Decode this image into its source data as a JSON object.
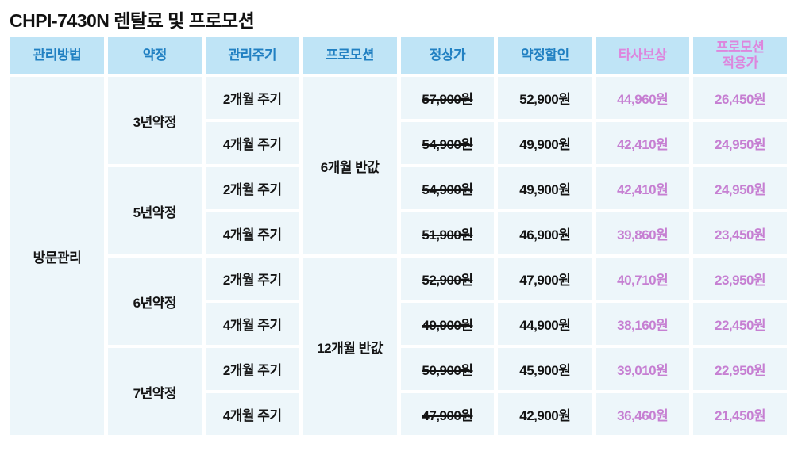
{
  "title": "CHPI-7430N 렌탈료 및 프로모션",
  "colors": {
    "header_bg": "#bfe4f6",
    "header_blue": "#2180c2",
    "header_pink": "#dd86dd",
    "body_bg": "#edf6fa",
    "price_purple": "#c67fd2",
    "body_text": "#141414",
    "page_bg": "#ffffff"
  },
  "table": {
    "headers": [
      "관리방법",
      "약정",
      "관리주기",
      "프로모션",
      "정상가",
      "약정할인",
      "타사보상",
      "프로모션\n적용가"
    ],
    "management_method": "방문관리",
    "rows": [
      {
        "contract": "3년약정",
        "cycle": "2개월 주기",
        "promotion": "6개월 반값",
        "regular_price": "57,900원",
        "contract_discount": "52,900원",
        "tradein_credit": "44,960원",
        "promo_price": "26,450원"
      },
      {
        "cycle": "4개월 주기",
        "regular_price": "54,900원",
        "contract_discount": "49,900원",
        "tradein_credit": "42,410원",
        "promo_price": "24,950원"
      },
      {
        "contract": "5년약정",
        "cycle": "2개월 주기",
        "regular_price": "54,900원",
        "contract_discount": "49,900원",
        "tradein_credit": "42,410원",
        "promo_price": "24,950원"
      },
      {
        "cycle": "4개월 주기",
        "regular_price": "51,900원",
        "contract_discount": "46,900원",
        "tradein_credit": "39,860원",
        "promo_price": "23,450원"
      },
      {
        "contract": "6년약정",
        "cycle": "2개월 주기",
        "promotion": "12개월 반값",
        "regular_price": "52,900원",
        "contract_discount": "47,900원",
        "tradein_credit": "40,710원",
        "promo_price": "23,950원"
      },
      {
        "cycle": "4개월 주기",
        "regular_price": "49,900원",
        "contract_discount": "44,900원",
        "tradein_credit": "38,160원",
        "promo_price": "22,450원"
      },
      {
        "contract": "7년약정",
        "cycle": "2개월 주기",
        "regular_price": "50,900원",
        "contract_discount": "45,900원",
        "tradein_credit": "39,010원",
        "promo_price": "22,950원"
      },
      {
        "cycle": "4개월 주기",
        "regular_price": "47,900원",
        "contract_discount": "42,900원",
        "tradein_credit": "36,460원",
        "promo_price": "21,450원"
      }
    ]
  }
}
